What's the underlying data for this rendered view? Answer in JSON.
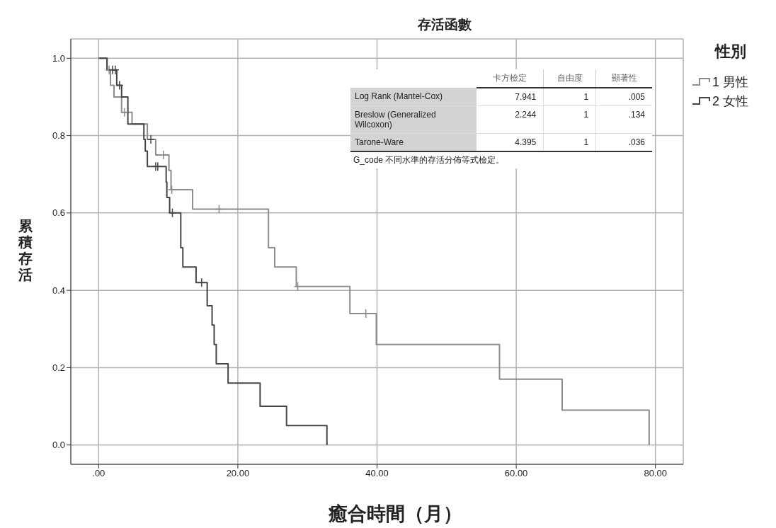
{
  "chart_data": {
    "type": "step",
    "title": "存活函數",
    "xlabel": "癒合時間（月）",
    "ylabel": "累積存活",
    "legend_title": "性別",
    "legend": "top right",
    "grid": true,
    "line_style": "solid",
    "xlim": [
      -4,
      84
    ],
    "xticks": [
      {
        "value": 0,
        "label": ".00"
      },
      {
        "value": 20,
        "label": "20.00"
      },
      {
        "value": 40,
        "label": "40.00"
      },
      {
        "value": 60,
        "label": "60.00"
      },
      {
        "value": 80,
        "label": "80.00"
      }
    ],
    "ylim": [
      -0.05,
      1.05
    ],
    "yticks": [
      {
        "value": 0,
        "label": "0.0"
      },
      {
        "value": 0.2,
        "label": "0.2"
      },
      {
        "value": 0.4,
        "label": "0.4"
      },
      {
        "value": 0.6,
        "label": "0.6"
      },
      {
        "value": 0.8,
        "label": "0.8"
      },
      {
        "value": 1,
        "label": "1.0"
      }
    ],
    "series": [
      {
        "type": "step",
        "name": "1 男性",
        "color": "#8c8c8c",
        "x": [
          0,
          1.2,
          1.7,
          2.2,
          3.3,
          4.8,
          7.0,
          8.2,
          10.1,
          10.4,
          13.5,
          24.4,
          25.3,
          28.4,
          36.1,
          39.9,
          57.6,
          66.6,
          79.1
        ],
        "values": [
          1,
          0.97,
          0.93,
          0.9,
          0.86,
          0.83,
          0.79,
          0.75,
          0.71,
          0.66,
          0.61,
          0.51,
          0.46,
          0.41,
          0.34,
          0.26,
          0.17,
          0.09,
          0
        ]
      },
      {
        "type": "step",
        "name": "2 女性",
        "color": "#454545",
        "x": [
          0,
          1.2,
          2.6,
          3.3,
          4.2,
          6.5,
          6.7,
          7.0,
          9.7,
          9.8,
          10.2,
          11.8,
          12.1,
          14.0,
          15.6,
          16.3,
          16.6,
          16.9,
          18.6,
          23.2,
          27.0,
          32.8
        ],
        "values": [
          1,
          0.97,
          0.93,
          0.9,
          0.83,
          0.79,
          0.76,
          0.72,
          0.68,
          0.64,
          0.6,
          0.51,
          0.46,
          0.42,
          0.36,
          0.31,
          0.26,
          0.21,
          0.16,
          0.1,
          0.05,
          0
        ]
      },
      {
        "type": "scatter",
        "marker": "cross",
        "color": "#8c8c8c",
        "x": [
          1.5,
          3.7,
          9.3,
          10.5,
          17.3,
          28.6,
          38.4
        ],
        "values": [
          0.97,
          0.86,
          0.75,
          0.66,
          0.61,
          0.41,
          0.34
        ]
      },
      {
        "type": "scatter",
        "marker": "cross",
        "color": "#454545",
        "x": [
          2.0,
          2.4,
          3.0,
          7.5,
          8.2,
          8.5,
          10.6,
          14.8
        ],
        "values": [
          0.97,
          0.97,
          0.93,
          0.79,
          0.72,
          0.72,
          0.6,
          0.42
        ]
      }
    ],
    "annotations": [
      "卡方檢定",
      "自由度",
      "顯著性",
      "Log Rank (Mantel-Cox)",
      "7.941",
      "1",
      ".005",
      "Breslow (Generalized Wilcoxon)",
      "2.244",
      "1",
      ".134",
      "Tarone-Ware",
      "4.395",
      "1",
      ".036",
      "G_code 不同水準的存活分佈等式檢定。"
    ]
  }
}
